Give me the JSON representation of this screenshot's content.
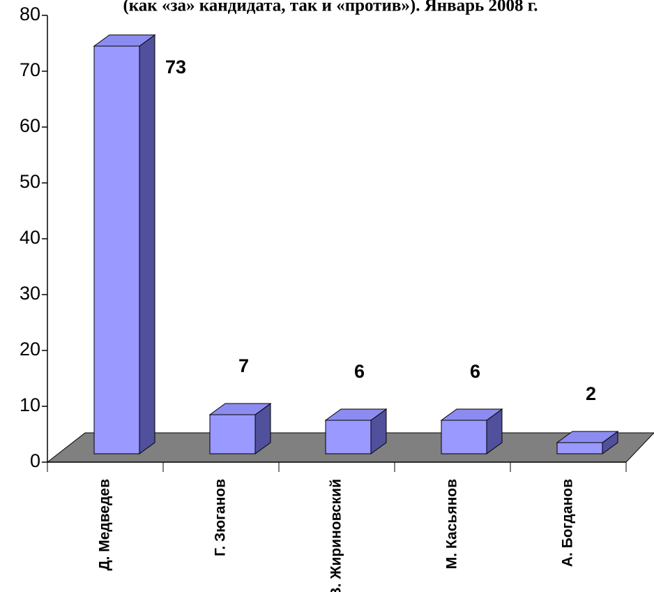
{
  "chart_data": {
    "type": "bar3d",
    "title": "(как «за» кандидата, так и «против»). Январь 2008 г.",
    "categories": [
      "Д. Медведев",
      "Г. Зюганов",
      "В. Жириновский",
      "М. Касьянов",
      "А. Богданов"
    ],
    "values": [
      73,
      7,
      6,
      6,
      2
    ],
    "color": "#9999ff",
    "ylim": [
      0,
      80
    ],
    "yticks": [
      0,
      10,
      20,
      30,
      40,
      50,
      60,
      70,
      80
    ],
    "grid": false
  }
}
